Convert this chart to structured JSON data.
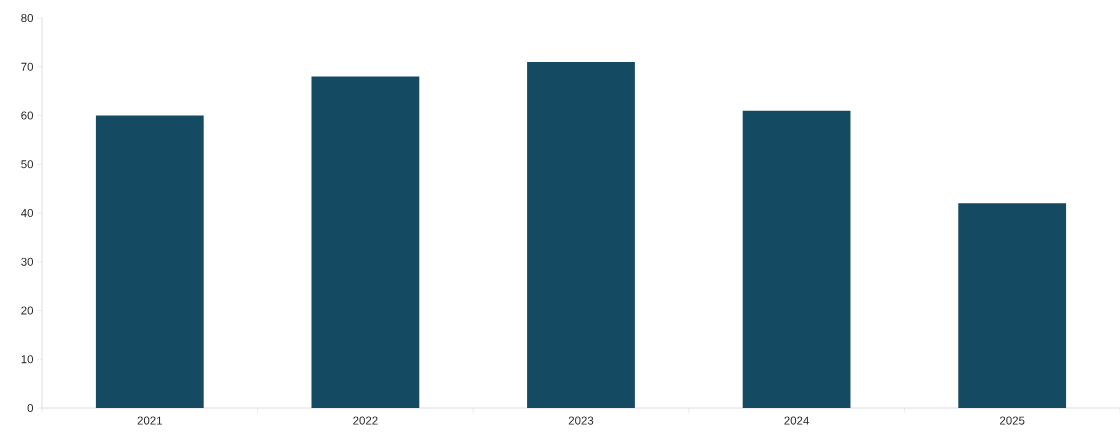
{
  "chart_data": {
    "type": "bar",
    "categories": [
      "2021",
      "2022",
      "2023",
      "2024",
      "2025"
    ],
    "values": [
      60,
      68,
      71,
      61,
      42
    ],
    "color": "#154a63",
    "ylim": [
      0,
      80
    ],
    "yticks": [
      0,
      10,
      20,
      30,
      40,
      50,
      60,
      70,
      80
    ]
  }
}
